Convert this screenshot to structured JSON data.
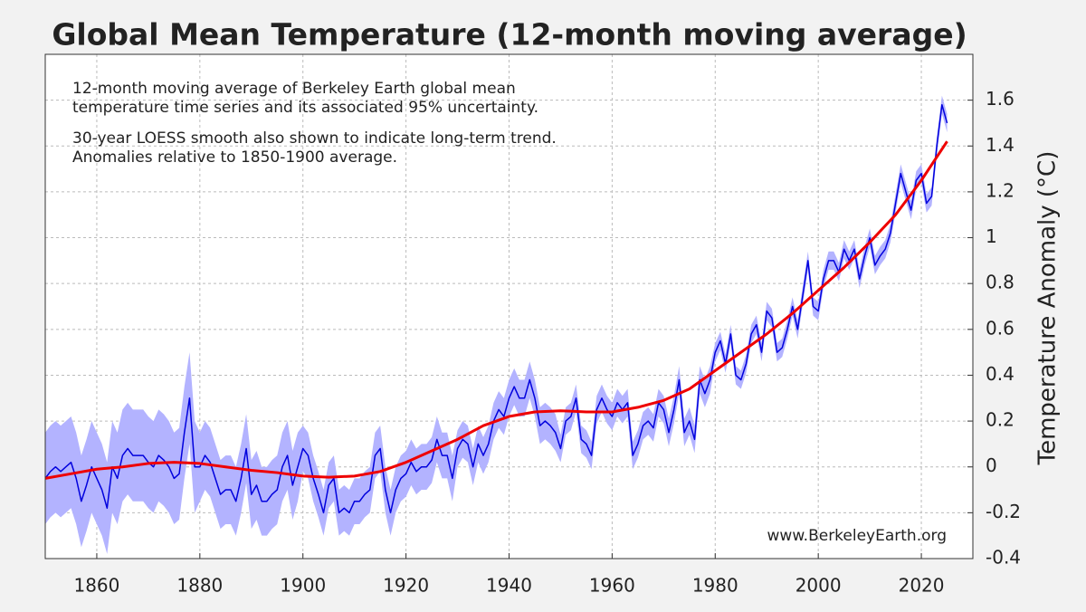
{
  "chart_data": {
    "type": "line",
    "title": "Global Mean Temperature (12-month moving average)",
    "annotations": [
      "12-month moving average of Berkeley Earth global mean",
      "temperature time series and its associated 95% uncertainty.",
      "30-year LOESS smooth also shown to indicate long-term trend.",
      "Anomalies relative to 1850-1900 average."
    ],
    "source": "www.BerkeleyEarth.org",
    "ylabel": "Temperature Anomaly (°C)",
    "xlim": [
      1850,
      2030
    ],
    "xticks": [
      1860,
      1880,
      1900,
      1920,
      1940,
      1960,
      1980,
      2000,
      2020
    ],
    "ylim": [
      -0.4,
      1.8
    ],
    "yticks": [
      -0.4,
      -0.2,
      0,
      0.2,
      0.4,
      0.6,
      0.8,
      1,
      1.2,
      1.4,
      1.6
    ],
    "grid": true,
    "series": [
      {
        "color": "#0000dd",
        "band_color": "#b3b3ff",
        "x": [
          1850,
          1851,
          1852,
          1853,
          1854,
          1855,
          1856,
          1857,
          1858,
          1859,
          1860,
          1861,
          1862,
          1863,
          1864,
          1865,
          1866,
          1867,
          1868,
          1869,
          1870,
          1871,
          1872,
          1873,
          1874,
          1875,
          1876,
          1877,
          1878,
          1879,
          1880,
          1881,
          1882,
          1883,
          1884,
          1885,
          1886,
          1887,
          1888,
          1889,
          1890,
          1891,
          1892,
          1893,
          1894,
          1895,
          1896,
          1897,
          1898,
          1899,
          1900,
          1901,
          1902,
          1903,
          1904,
          1905,
          1906,
          1907,
          1908,
          1909,
          1910,
          1911,
          1912,
          1913,
          1914,
          1915,
          1916,
          1917,
          1918,
          1919,
          1920,
          1921,
          1922,
          1923,
          1924,
          1925,
          1926,
          1927,
          1928,
          1929,
          1930,
          1931,
          1932,
          1933,
          1934,
          1935,
          1936,
          1937,
          1938,
          1939,
          1940,
          1941,
          1942,
          1943,
          1944,
          1945,
          1946,
          1947,
          1948,
          1949,
          1950,
          1951,
          1952,
          1953,
          1954,
          1955,
          1956,
          1957,
          1958,
          1959,
          1960,
          1961,
          1962,
          1963,
          1964,
          1965,
          1966,
          1967,
          1968,
          1969,
          1970,
          1971,
          1972,
          1973,
          1974,
          1975,
          1976,
          1977,
          1978,
          1979,
          1980,
          1981,
          1982,
          1983,
          1984,
          1985,
          1986,
          1987,
          1988,
          1989,
          1990,
          1991,
          1992,
          1993,
          1994,
          1995,
          1996,
          1997,
          1998,
          1999,
          2000,
          2001,
          2002,
          2003,
          2004,
          2005,
          2006,
          2007,
          2008,
          2009,
          2010,
          2011,
          2012,
          2013,
          2014,
          2015,
          2016,
          2017,
          2018,
          2019,
          2020,
          2021,
          2022,
          2023,
          2024,
          2025
        ],
        "values": [
          -0.05,
          -0.02,
          0.0,
          -0.02,
          0.0,
          0.02,
          -0.05,
          -0.15,
          -0.08,
          0.0,
          -0.05,
          -0.1,
          -0.18,
          0.0,
          -0.05,
          0.05,
          0.08,
          0.05,
          0.05,
          0.05,
          0.02,
          0.0,
          0.05,
          0.03,
          0.0,
          -0.05,
          -0.03,
          0.15,
          0.3,
          0.0,
          0.0,
          0.05,
          0.02,
          -0.05,
          -0.12,
          -0.1,
          -0.1,
          -0.15,
          -0.05,
          0.08,
          -0.12,
          -0.08,
          -0.15,
          -0.15,
          -0.12,
          -0.1,
          0.0,
          0.05,
          -0.08,
          0.0,
          0.08,
          0.05,
          -0.05,
          -0.12,
          -0.2,
          -0.08,
          -0.05,
          -0.2,
          -0.18,
          -0.2,
          -0.15,
          -0.15,
          -0.12,
          -0.1,
          0.05,
          0.08,
          -0.1,
          -0.2,
          -0.1,
          -0.05,
          -0.03,
          0.02,
          -0.02,
          0.0,
          0.0,
          0.03,
          0.12,
          0.05,
          0.05,
          -0.05,
          0.08,
          0.12,
          0.1,
          0.0,
          0.1,
          0.05,
          0.1,
          0.2,
          0.25,
          0.22,
          0.3,
          0.35,
          0.3,
          0.3,
          0.38,
          0.3,
          0.18,
          0.2,
          0.18,
          0.15,
          0.08,
          0.2,
          0.22,
          0.3,
          0.12,
          0.1,
          0.05,
          0.25,
          0.3,
          0.25,
          0.22,
          0.28,
          0.25,
          0.28,
          0.05,
          0.1,
          0.18,
          0.2,
          0.17,
          0.28,
          0.25,
          0.15,
          0.25,
          0.38,
          0.15,
          0.2,
          0.12,
          0.38,
          0.32,
          0.38,
          0.5,
          0.55,
          0.45,
          0.58,
          0.4,
          0.38,
          0.45,
          0.58,
          0.62,
          0.5,
          0.68,
          0.65,
          0.5,
          0.52,
          0.6,
          0.7,
          0.6,
          0.75,
          0.9,
          0.7,
          0.68,
          0.82,
          0.9,
          0.9,
          0.85,
          0.95,
          0.9,
          0.95,
          0.82,
          0.92,
          1.0,
          0.88,
          0.92,
          0.95,
          1.02,
          1.15,
          1.28,
          1.2,
          1.12,
          1.25,
          1.28,
          1.15,
          1.18,
          1.4,
          1.58,
          1.5
        ],
        "uncertainty": [
          0.2,
          0.2,
          0.2,
          0.2,
          0.2,
          0.2,
          0.2,
          0.2,
          0.2,
          0.2,
          0.2,
          0.2,
          0.2,
          0.2,
          0.2,
          0.2,
          0.2,
          0.2,
          0.2,
          0.2,
          0.2,
          0.2,
          0.2,
          0.2,
          0.2,
          0.2,
          0.2,
          0.2,
          0.2,
          0.2,
          0.15,
          0.15,
          0.15,
          0.15,
          0.15,
          0.15,
          0.15,
          0.15,
          0.15,
          0.15,
          0.15,
          0.15,
          0.15,
          0.15,
          0.15,
          0.15,
          0.15,
          0.15,
          0.15,
          0.15,
          0.1,
          0.1,
          0.1,
          0.1,
          0.1,
          0.1,
          0.1,
          0.1,
          0.1,
          0.1,
          0.1,
          0.1,
          0.1,
          0.1,
          0.1,
          0.1,
          0.1,
          0.1,
          0.1,
          0.1,
          0.1,
          0.1,
          0.1,
          0.1,
          0.1,
          0.1,
          0.1,
          0.1,
          0.1,
          0.1,
          0.08,
          0.08,
          0.08,
          0.08,
          0.08,
          0.08,
          0.08,
          0.08,
          0.08,
          0.08,
          0.08,
          0.08,
          0.08,
          0.08,
          0.08,
          0.08,
          0.08,
          0.08,
          0.08,
          0.08,
          0.06,
          0.06,
          0.06,
          0.06,
          0.06,
          0.06,
          0.06,
          0.06,
          0.06,
          0.06,
          0.06,
          0.06,
          0.06,
          0.06,
          0.06,
          0.06,
          0.06,
          0.06,
          0.06,
          0.06,
          0.06,
          0.06,
          0.06,
          0.06,
          0.06,
          0.06,
          0.06,
          0.06,
          0.06,
          0.06,
          0.04,
          0.04,
          0.04,
          0.04,
          0.04,
          0.04,
          0.04,
          0.04,
          0.04,
          0.04,
          0.04,
          0.04,
          0.04,
          0.04,
          0.04,
          0.04,
          0.04,
          0.04,
          0.04,
          0.04,
          0.04,
          0.04,
          0.04,
          0.04,
          0.04,
          0.04,
          0.04,
          0.04,
          0.04,
          0.04,
          0.04,
          0.04,
          0.04,
          0.04,
          0.04,
          0.04,
          0.04,
          0.04,
          0.04,
          0.04,
          0.04,
          0.04,
          0.04,
          0.04,
          0.04,
          0.04
        ]
      },
      {
        "color": "#ee0000",
        "x": [
          1850,
          1855,
          1860,
          1865,
          1870,
          1875,
          1880,
          1885,
          1890,
          1895,
          1900,
          1905,
          1910,
          1915,
          1920,
          1925,
          1930,
          1935,
          1940,
          1945,
          1950,
          1955,
          1960,
          1965,
          1970,
          1975,
          1980,
          1985,
          1990,
          1995,
          2000,
          2005,
          2010,
          2015,
          2020,
          2025
        ],
        "values": [
          -0.05,
          -0.03,
          -0.01,
          0.0,
          0.015,
          0.02,
          0.015,
          0.0,
          -0.015,
          -0.025,
          -0.04,
          -0.045,
          -0.04,
          -0.02,
          0.02,
          0.07,
          0.12,
          0.18,
          0.22,
          0.24,
          0.245,
          0.24,
          0.24,
          0.26,
          0.29,
          0.34,
          0.42,
          0.5,
          0.58,
          0.67,
          0.77,
          0.87,
          0.98,
          1.1,
          1.25,
          1.42
        ]
      }
    ]
  }
}
